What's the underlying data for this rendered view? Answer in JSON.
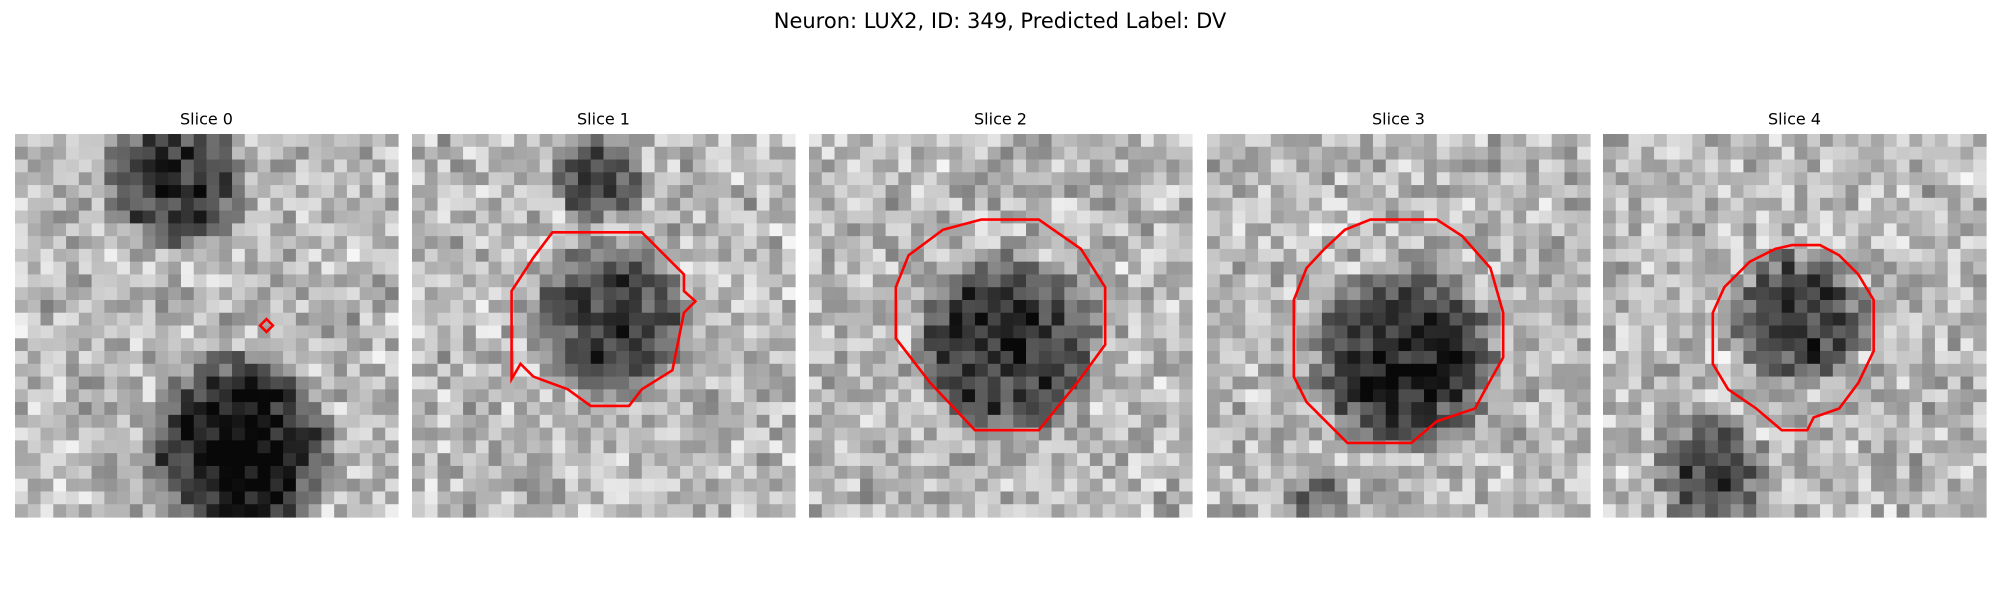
{
  "title": "Neuron: LUX2, ID: 349, Predicted Label: DV",
  "panels": [
    {
      "title": "Slice 0"
    },
    {
      "title": "Slice 1"
    },
    {
      "title": "Slice 2"
    },
    {
      "title": "Slice 3"
    },
    {
      "title": "Slice 4"
    }
  ]
}
